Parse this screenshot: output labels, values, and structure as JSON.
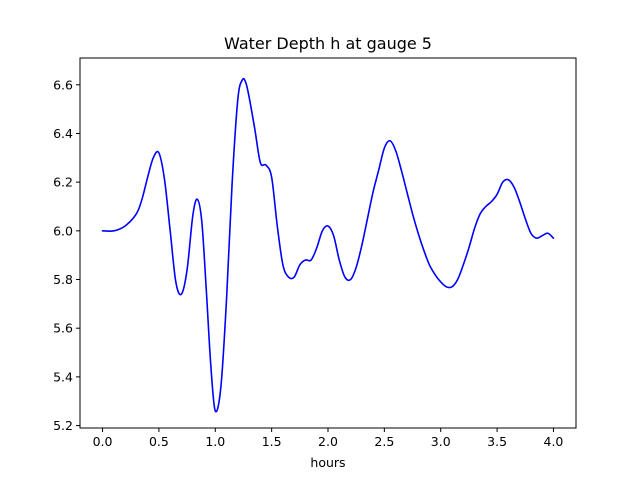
{
  "chart_data": {
    "type": "line",
    "title": "Water Depth h at gauge 5",
    "xlabel": "hours",
    "ylabel": "",
    "xlim": [
      -0.2,
      4.2
    ],
    "ylim": [
      5.19,
      6.71
    ],
    "xticks": [
      0.0,
      0.5,
      1.0,
      1.5,
      2.0,
      2.5,
      3.0,
      3.5,
      4.0
    ],
    "xtick_labels": [
      "0.0",
      "0.5",
      "1.0",
      "1.5",
      "2.0",
      "2.5",
      "3.0",
      "3.5",
      "4.0"
    ],
    "yticks": [
      5.2,
      5.4,
      5.6,
      5.8,
      6.0,
      6.2,
      6.4,
      6.6
    ],
    "ytick_labels": [
      "5.2",
      "5.4",
      "5.6",
      "5.8",
      "6.0",
      "6.2",
      "6.4",
      "6.6"
    ],
    "grid": false,
    "series": [
      {
        "color": "#0000ff",
        "x": [
          0.0,
          0.1,
          0.2,
          0.3,
          0.35,
          0.4,
          0.45,
          0.5,
          0.55,
          0.6,
          0.65,
          0.7,
          0.75,
          0.8,
          0.84,
          0.88,
          0.92,
          0.96,
          1.0,
          1.05,
          1.1,
          1.15,
          1.2,
          1.24,
          1.27,
          1.3,
          1.35,
          1.4,
          1.45,
          1.5,
          1.55,
          1.6,
          1.65,
          1.7,
          1.75,
          1.8,
          1.85,
          1.9,
          1.95,
          2.0,
          2.05,
          2.1,
          2.15,
          2.2,
          2.25,
          2.3,
          2.35,
          2.4,
          2.45,
          2.5,
          2.55,
          2.6,
          2.65,
          2.7,
          2.75,
          2.8,
          2.85,
          2.9,
          2.95,
          3.0,
          3.05,
          3.1,
          3.15,
          3.2,
          3.25,
          3.3,
          3.35,
          3.4,
          3.45,
          3.5,
          3.55,
          3.6,
          3.65,
          3.7,
          3.75,
          3.8,
          3.85,
          3.9,
          3.95,
          4.0
        ],
        "y": [
          6.0,
          6.0,
          6.02,
          6.07,
          6.13,
          6.22,
          6.3,
          6.32,
          6.21,
          6.0,
          5.79,
          5.74,
          5.84,
          6.06,
          6.13,
          6.04,
          5.76,
          5.45,
          5.26,
          5.36,
          5.72,
          6.2,
          6.54,
          6.62,
          6.61,
          6.55,
          6.42,
          6.28,
          6.27,
          6.22,
          6.02,
          5.86,
          5.81,
          5.81,
          5.86,
          5.88,
          5.88,
          5.93,
          6.0,
          6.02,
          5.98,
          5.88,
          5.81,
          5.8,
          5.85,
          5.94,
          6.05,
          6.16,
          6.25,
          6.34,
          6.37,
          6.33,
          6.25,
          6.16,
          6.07,
          5.99,
          5.92,
          5.86,
          5.82,
          5.79,
          5.77,
          5.77,
          5.8,
          5.86,
          5.93,
          6.01,
          6.07,
          6.1,
          6.12,
          6.15,
          6.2,
          6.21,
          6.18,
          6.12,
          6.05,
          5.99,
          5.97,
          5.98,
          5.99,
          5.97
        ]
      }
    ]
  }
}
